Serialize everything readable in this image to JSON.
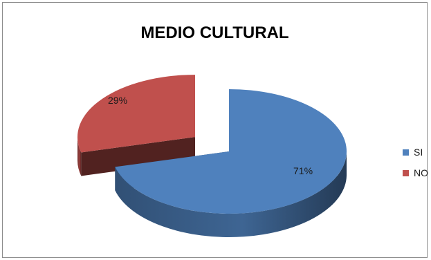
{
  "chart_data": {
    "type": "pie",
    "title": "MEDIO CULTURAL",
    "categories": [
      "SI",
      "NO"
    ],
    "values": [
      71,
      29
    ],
    "data_labels": [
      "71%",
      "29%"
    ],
    "colors": [
      "#4f81bd",
      "#c0504d"
    ],
    "exploded": "NO",
    "three_d": true,
    "legend_position": "right"
  }
}
